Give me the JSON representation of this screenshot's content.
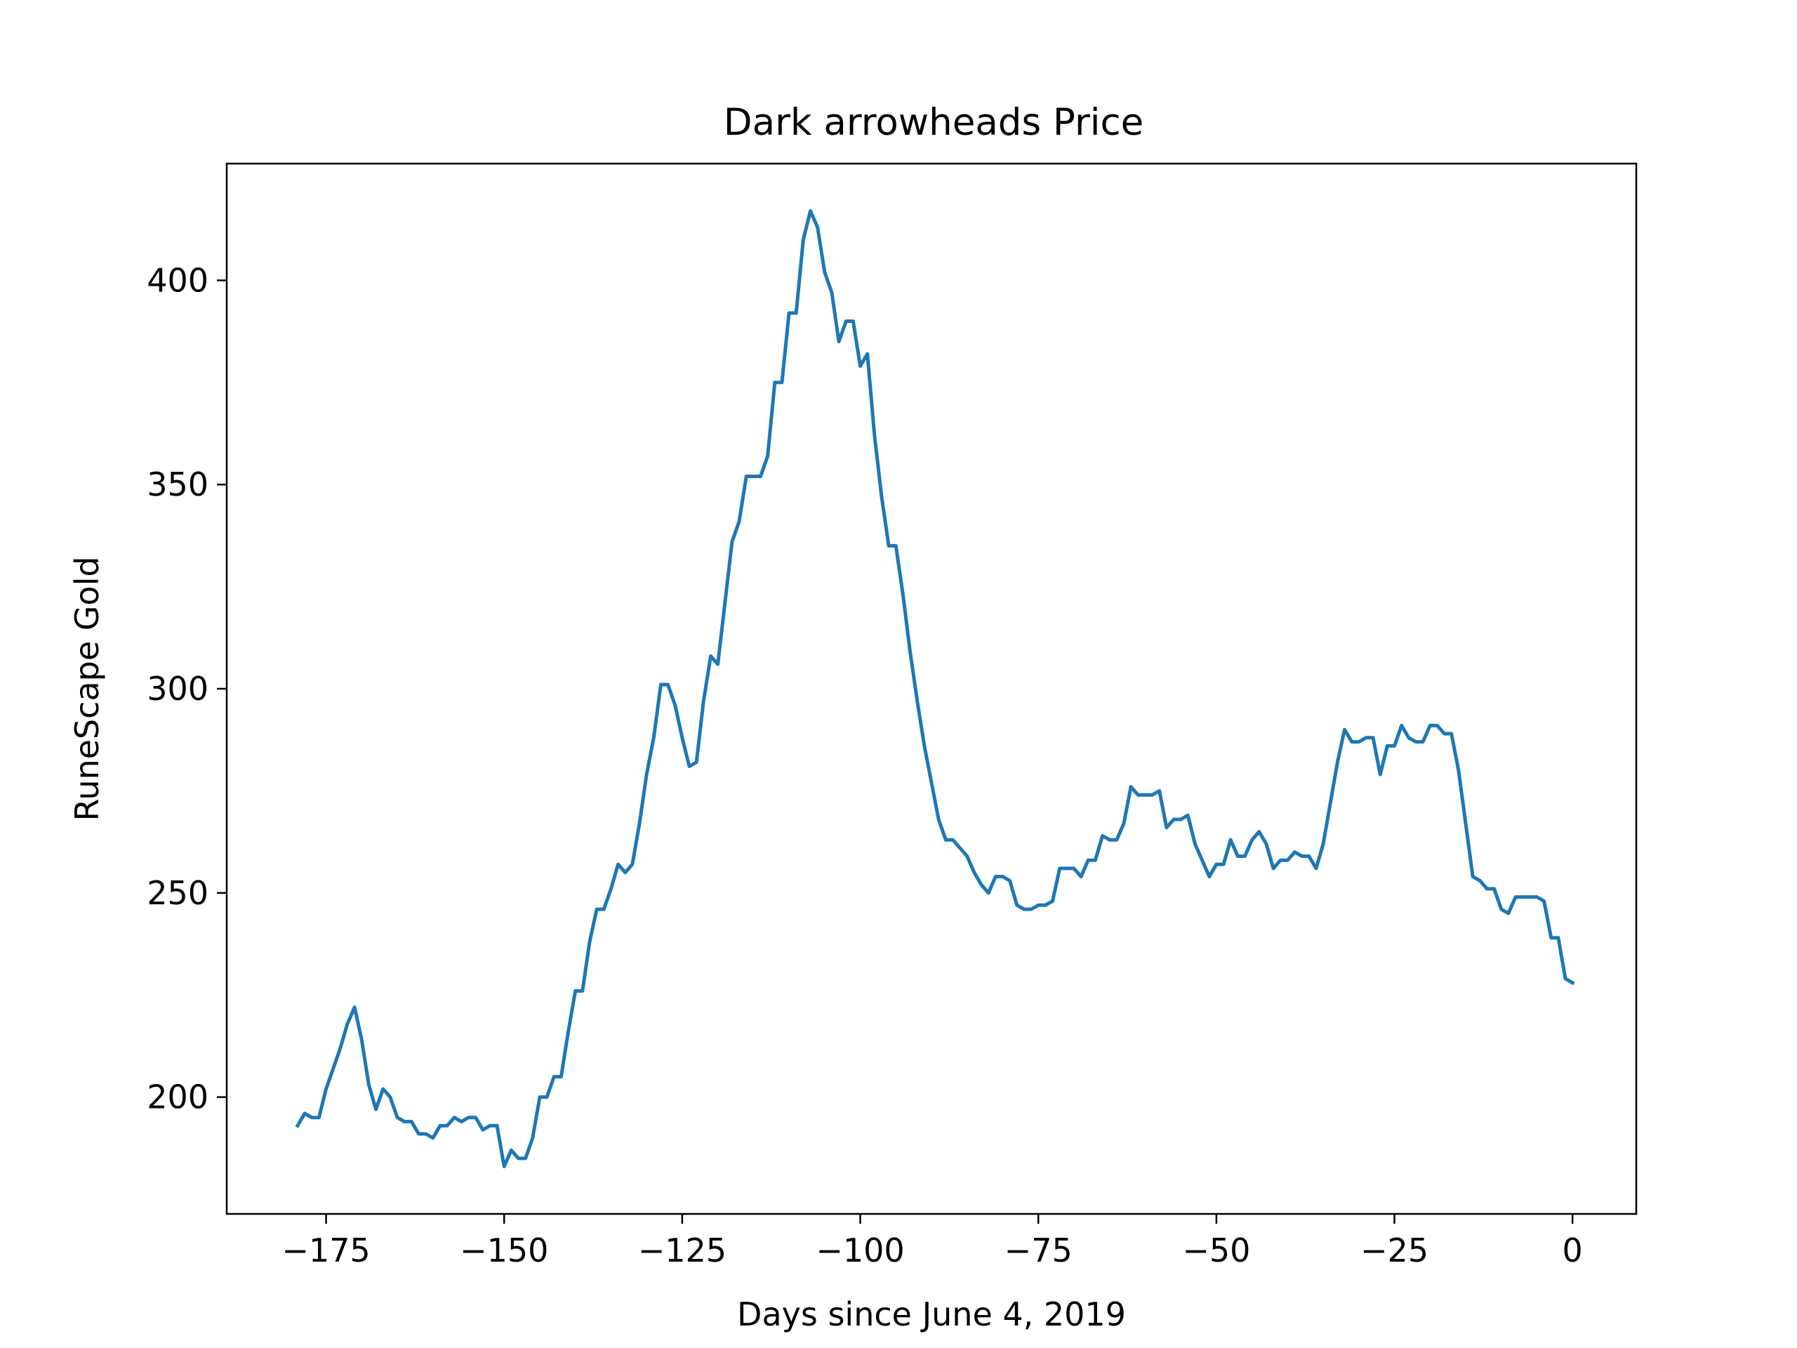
{
  "chart_data": {
    "type": "line",
    "title": "Dark arrowheads Price",
    "xlabel": "Days since June 4, 2019",
    "ylabel": "RuneScape Gold",
    "xlim": [
      -188.95,
      8.95
    ],
    "ylim": [
      171.4,
      428.6
    ],
    "xticks": [
      -175,
      -150,
      -125,
      -100,
      -75,
      -50,
      -25,
      0
    ],
    "xtick_labels": [
      "−175",
      "−150",
      "−125",
      "−100",
      "−75",
      "−50",
      "−25",
      "0"
    ],
    "yticks": [
      200,
      250,
      300,
      350,
      400
    ],
    "ytick_labels": [
      "200",
      "250",
      "300",
      "350",
      "400"
    ],
    "grid": false,
    "legend": "none",
    "line_color": "#1f77b4",
    "series": [
      {
        "x": [
          -179,
          -178,
          -177,
          -176,
          -175,
          -174,
          -173,
          -172,
          -171,
          -170,
          -169,
          -168,
          -167,
          -166,
          -165,
          -164,
          -163,
          -162,
          -161,
          -160,
          -159,
          -158,
          -157,
          -156,
          -155,
          -154,
          -153,
          -152,
          -151,
          -150,
          -149,
          -148,
          -147,
          -146,
          -145,
          -144,
          -143,
          -142,
          -141,
          -140,
          -139,
          -138,
          -137,
          -136,
          -135,
          -134,
          -133,
          -132,
          -131,
          -130,
          -129,
          -128,
          -127,
          -126,
          -125,
          -124,
          -123,
          -122,
          -121,
          -120,
          -119,
          -118,
          -117,
          -116,
          -115,
          -114,
          -113,
          -112,
          -111,
          -110,
          -109,
          -108,
          -107,
          -106,
          -105,
          -104,
          -103,
          -102,
          -101,
          -100,
          -99,
          -98,
          -97,
          -96,
          -95,
          -94,
          -93,
          -92,
          -91,
          -90,
          -89,
          -88,
          -87,
          -86,
          -85,
          -84,
          -83,
          -82,
          -81,
          -80,
          -79,
          -78,
          -77,
          -76,
          -75,
          -74,
          -73,
          -72,
          -71,
          -70,
          -69,
          -68,
          -67,
          -66,
          -65,
          -64,
          -63,
          -62,
          -61,
          -60,
          -59,
          -58,
          -57,
          -56,
          -55,
          -54,
          -53,
          -52,
          -51,
          -50,
          -49,
          -48,
          -47,
          -46,
          -45,
          -44,
          -43,
          -42,
          -41,
          -40,
          -39,
          -38,
          -37,
          -36,
          -35,
          -34,
          -33,
          -32,
          -31,
          -30,
          -29,
          -28,
          -27,
          -26,
          -25,
          -24,
          -23,
          -22,
          -21,
          -20,
          -19,
          -18,
          -17,
          -16,
          -15,
          -14,
          -13,
          -12,
          -11,
          -10,
          -9,
          -8,
          -7,
          -6,
          -5,
          -4,
          -3,
          -2,
          -1,
          0
        ],
        "y": [
          193,
          196,
          195,
          195,
          202,
          207,
          212,
          218,
          222,
          214,
          203,
          197,
          202,
          200,
          195,
          194,
          194,
          191,
          191,
          190,
          193,
          193,
          195,
          194,
          195,
          195,
          192,
          193,
          193,
          183,
          187,
          185,
          185,
          190,
          200,
          200,
          205,
          205,
          216,
          226,
          226,
          238,
          246,
          246,
          251,
          257,
          255,
          257,
          267,
          279,
          288,
          301,
          301,
          296,
          288,
          281,
          282,
          297,
          308,
          306,
          321,
          336,
          341,
          352,
          352,
          352,
          357,
          375,
          375,
          392,
          392,
          410,
          417,
          413,
          402,
          397,
          385,
          390,
          390,
          379,
          382,
          362,
          347,
          335,
          335,
          323,
          309,
          297,
          286,
          277,
          268,
          263,
          263,
          261,
          259,
          255,
          252,
          250,
          254,
          254,
          253,
          247,
          246,
          246,
          247,
          247,
          248,
          256,
          256,
          256,
          254,
          258,
          258,
          264,
          263,
          263,
          267,
          276,
          274,
          274,
          274,
          275,
          266,
          268,
          268,
          269,
          262,
          258,
          254,
          257,
          257,
          263,
          259,
          259,
          263,
          265,
          262,
          256,
          258,
          258,
          260,
          259,
          259,
          256,
          262,
          272,
          282,
          290,
          287,
          287,
          288,
          288,
          279,
          286,
          286,
          291,
          288,
          287,
          287,
          291,
          291,
          289,
          289,
          280,
          267,
          254,
          253,
          251,
          251,
          246,
          245,
          249,
          249,
          249,
          249,
          248,
          239,
          239,
          229,
          228
        ]
      }
    ]
  }
}
